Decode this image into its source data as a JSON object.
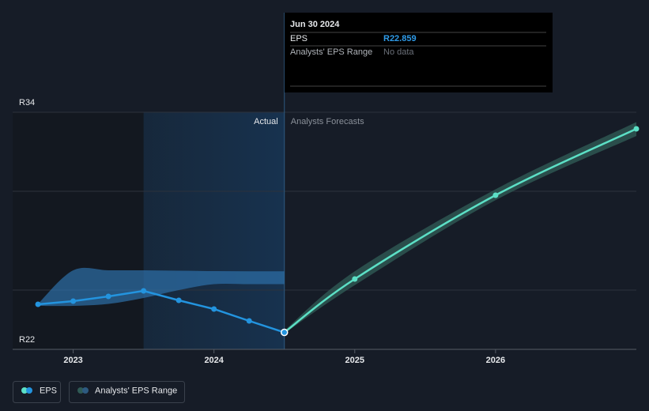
{
  "chart_data": {
    "type": "line",
    "x": [
      2022.75,
      2023,
      2023.25,
      2023.5,
      2023.75,
      2024,
      2024.25,
      2024.5,
      2025,
      2026,
      2027
    ],
    "xlim": [
      2022.57,
      2027
    ],
    "xticks": [
      2023,
      2024,
      2025,
      2026
    ],
    "ylim": [
      22,
      34
    ],
    "yticks": [
      {
        "value": 22,
        "label": "R22"
      },
      {
        "value": 34,
        "label": "R34"
      }
    ],
    "ygrid": [
      25,
      30,
      34
    ],
    "highlight_x": [
      2023.5,
      2024.5
    ],
    "series": [
      {
        "name": "EPS",
        "color": "#2394df",
        "forecast_color": "#5ce0c6",
        "values": [
          24.28,
          24.44,
          24.68,
          24.96,
          24.48,
          24.04,
          23.44,
          22.859,
          25.56,
          29.8,
          33.16
        ]
      }
    ],
    "range": {
      "name": "Analysts' EPS Range",
      "color": "#2d6fa8",
      "forecast_color": "#2f5a55",
      "pieces": [
        {
          "x": [
            2022.75,
            2023,
            2023.25,
            2023.5,
            2023.75,
            2024,
            2024.25,
            2024.5
          ],
          "low": [
            24.2,
            24.2,
            24.3,
            24.6,
            25.0,
            25.3,
            25.3,
            25.3
          ],
          "high": [
            24.3,
            26.0,
            26.0,
            26.0,
            25.98,
            25.96,
            25.95,
            25.95
          ]
        },
        {
          "x": [
            2024.5,
            2025,
            2026,
            2027
          ],
          "low": [
            22.8,
            25.25,
            29.55,
            32.8
          ],
          "high": [
            22.95,
            25.95,
            30.1,
            33.5
          ]
        }
      ]
    },
    "annotations": {
      "actual": "Actual",
      "forecast": "Analysts Forecasts"
    },
    "tooltip": {
      "date": "Jun 30 2024",
      "rows": [
        {
          "label": "EPS",
          "value": "R22.859"
        },
        {
          "label": "Analysts' EPS Range",
          "value": "No data"
        }
      ]
    }
  }
}
